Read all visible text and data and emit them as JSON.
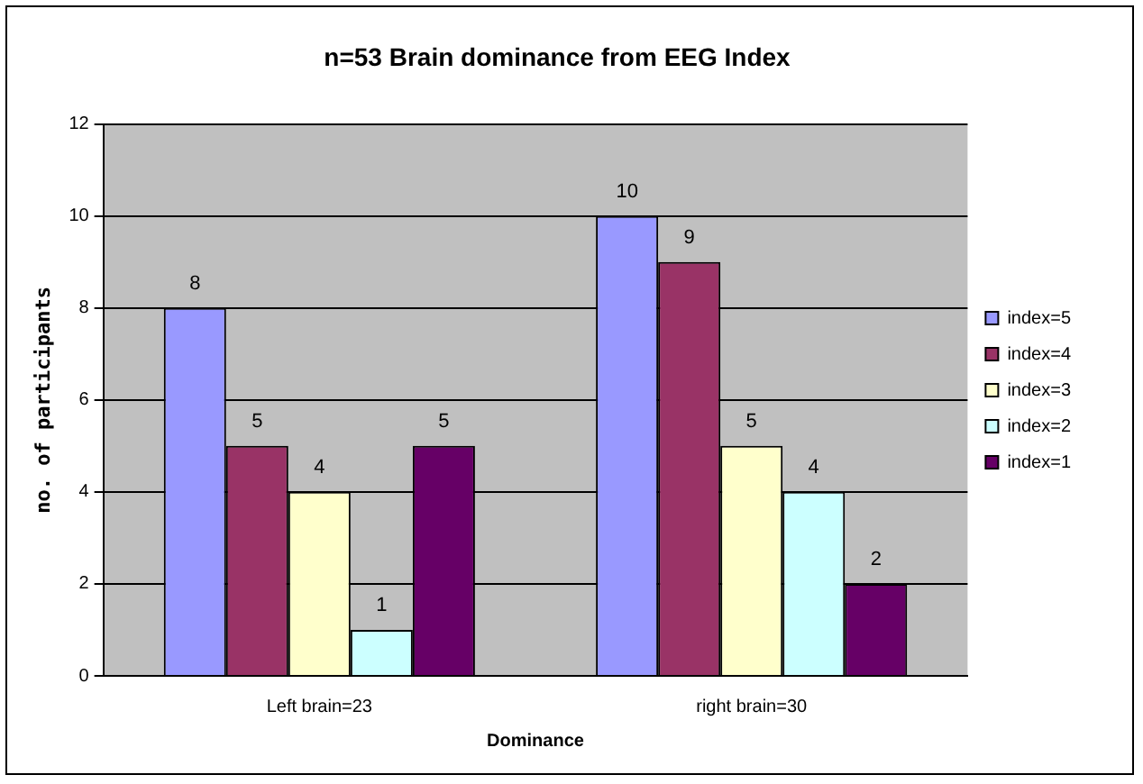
{
  "chart_data": {
    "type": "bar",
    "title": "n=53 Brain dominance from EEG Index",
    "xlabel": "Dominance",
    "ylabel": "no. of participants",
    "categories": [
      "Left brain=23",
      "right brain=30"
    ],
    "series": [
      {
        "name": "index=5",
        "color": "#9999ff",
        "values": [
          8,
          10
        ]
      },
      {
        "name": "index=4",
        "color": "#993366",
        "values": [
          5,
          9
        ]
      },
      {
        "name": "index=3",
        "color": "#ffffcc",
        "values": [
          4,
          5
        ]
      },
      {
        "name": "index=2",
        "color": "#ccffff",
        "values": [
          1,
          4
        ]
      },
      {
        "name": "index=1",
        "color": "#660066",
        "values": [
          5,
          2
        ]
      }
    ],
    "ylim": [
      0,
      12
    ],
    "yticks": [
      0,
      2,
      4,
      6,
      8,
      10,
      12
    ],
    "grid": "y",
    "legend": "right",
    "data_labels": true
  }
}
